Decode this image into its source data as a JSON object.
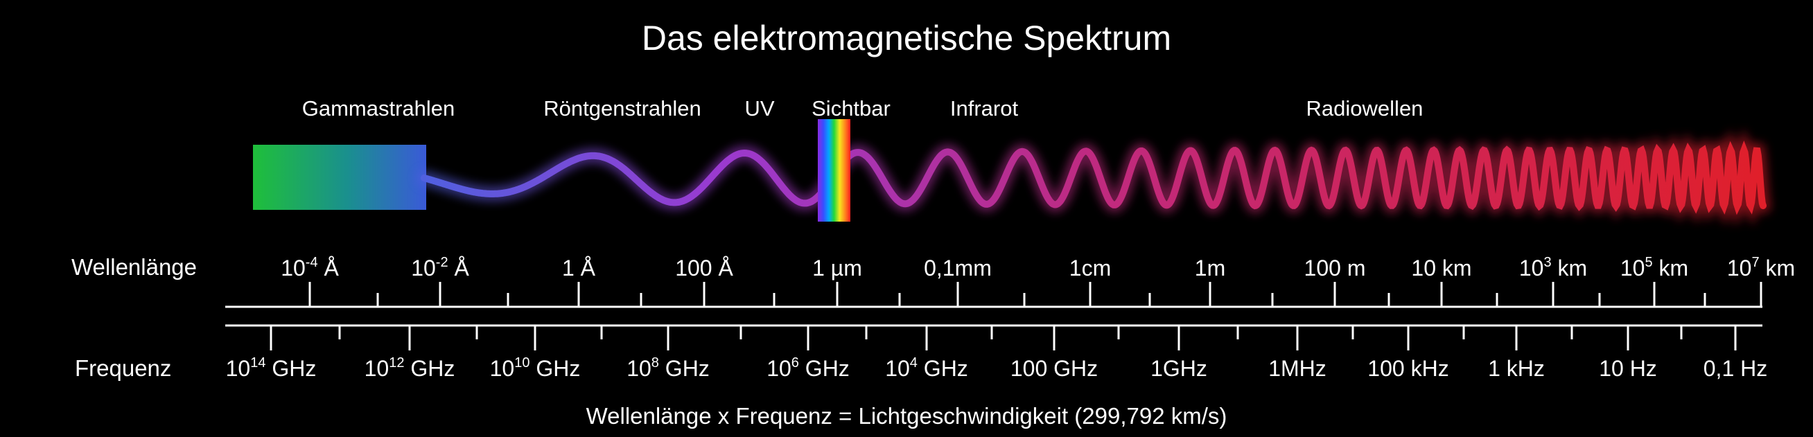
{
  "title": "Das elektromagnetische Spektrum",
  "bands": [
    {
      "id": "gamma",
      "label": "Gammastrahlen"
    },
    {
      "id": "xray",
      "label": "Röntgenstrahlen"
    },
    {
      "id": "uv",
      "label": "UV"
    },
    {
      "id": "visible",
      "label": "Sichtbar"
    },
    {
      "id": "infrared",
      "label": "Infrarot"
    },
    {
      "id": "radio",
      "label": "Radiowellen"
    }
  ],
  "wavelength_scale": {
    "label": "Wellenlänge",
    "ticks": [
      {
        "base": "10",
        "sup": "-4",
        "unit": "Å"
      },
      {
        "base": "10",
        "sup": "-2",
        "unit": "Å"
      },
      {
        "base": "1",
        "sup": "",
        "unit": "Å"
      },
      {
        "base": "100",
        "sup": "",
        "unit": "Å"
      },
      {
        "base": "1",
        "sup": "",
        "unit": "µm"
      },
      {
        "base": "0,1mm",
        "sup": "",
        "unit": ""
      },
      {
        "base": "1cm",
        "sup": "",
        "unit": ""
      },
      {
        "base": "1m",
        "sup": "",
        "unit": ""
      },
      {
        "base": "100",
        "sup": "",
        "unit": "m"
      },
      {
        "base": "10",
        "sup": "",
        "unit": "km"
      },
      {
        "base": "10",
        "sup": "3",
        "unit": "km"
      },
      {
        "base": "10",
        "sup": "5",
        "unit": "km"
      },
      {
        "base": "10",
        "sup": "7",
        "unit": "km"
      }
    ]
  },
  "frequency_scale": {
    "label": "Frequenz",
    "ticks": [
      {
        "base": "10",
        "sup": "14",
        "unit": "GHz"
      },
      {
        "base": "10",
        "sup": "12",
        "unit": "GHz"
      },
      {
        "base": "10",
        "sup": "10",
        "unit": "GHz"
      },
      {
        "base": "10",
        "sup": "8",
        "unit": "GHz"
      },
      {
        "base": "10",
        "sup": "6",
        "unit": "GHz"
      },
      {
        "base": "10",
        "sup": "4",
        "unit": "GHz"
      },
      {
        "base": "100",
        "sup": "",
        "unit": "GHz"
      },
      {
        "base": "1GHz",
        "sup": "",
        "unit": ""
      },
      {
        "base": "1MHz",
        "sup": "",
        "unit": ""
      },
      {
        "base": "100",
        "sup": "",
        "unit": "kHz"
      },
      {
        "base": "1",
        "sup": "",
        "unit": "kHz"
      },
      {
        "base": "10",
        "sup": "",
        "unit": "Hz"
      },
      {
        "base": "0,1",
        "sup": "",
        "unit": "Hz"
      }
    ]
  },
  "formula": "Wellenlänge x Frequenz  = Lichtgeschwindigkeit (299,792 km/s)",
  "colors": {
    "gamma_start": "#1fbf3a",
    "gamma_mid": "#1a8f8f",
    "gamma_end": "#3a5ad8",
    "wave_blue": "#5060e0",
    "wave_purple": "#9a3ad0",
    "wave_magenta": "#c02a80",
    "wave_red": "#e01f2a"
  }
}
